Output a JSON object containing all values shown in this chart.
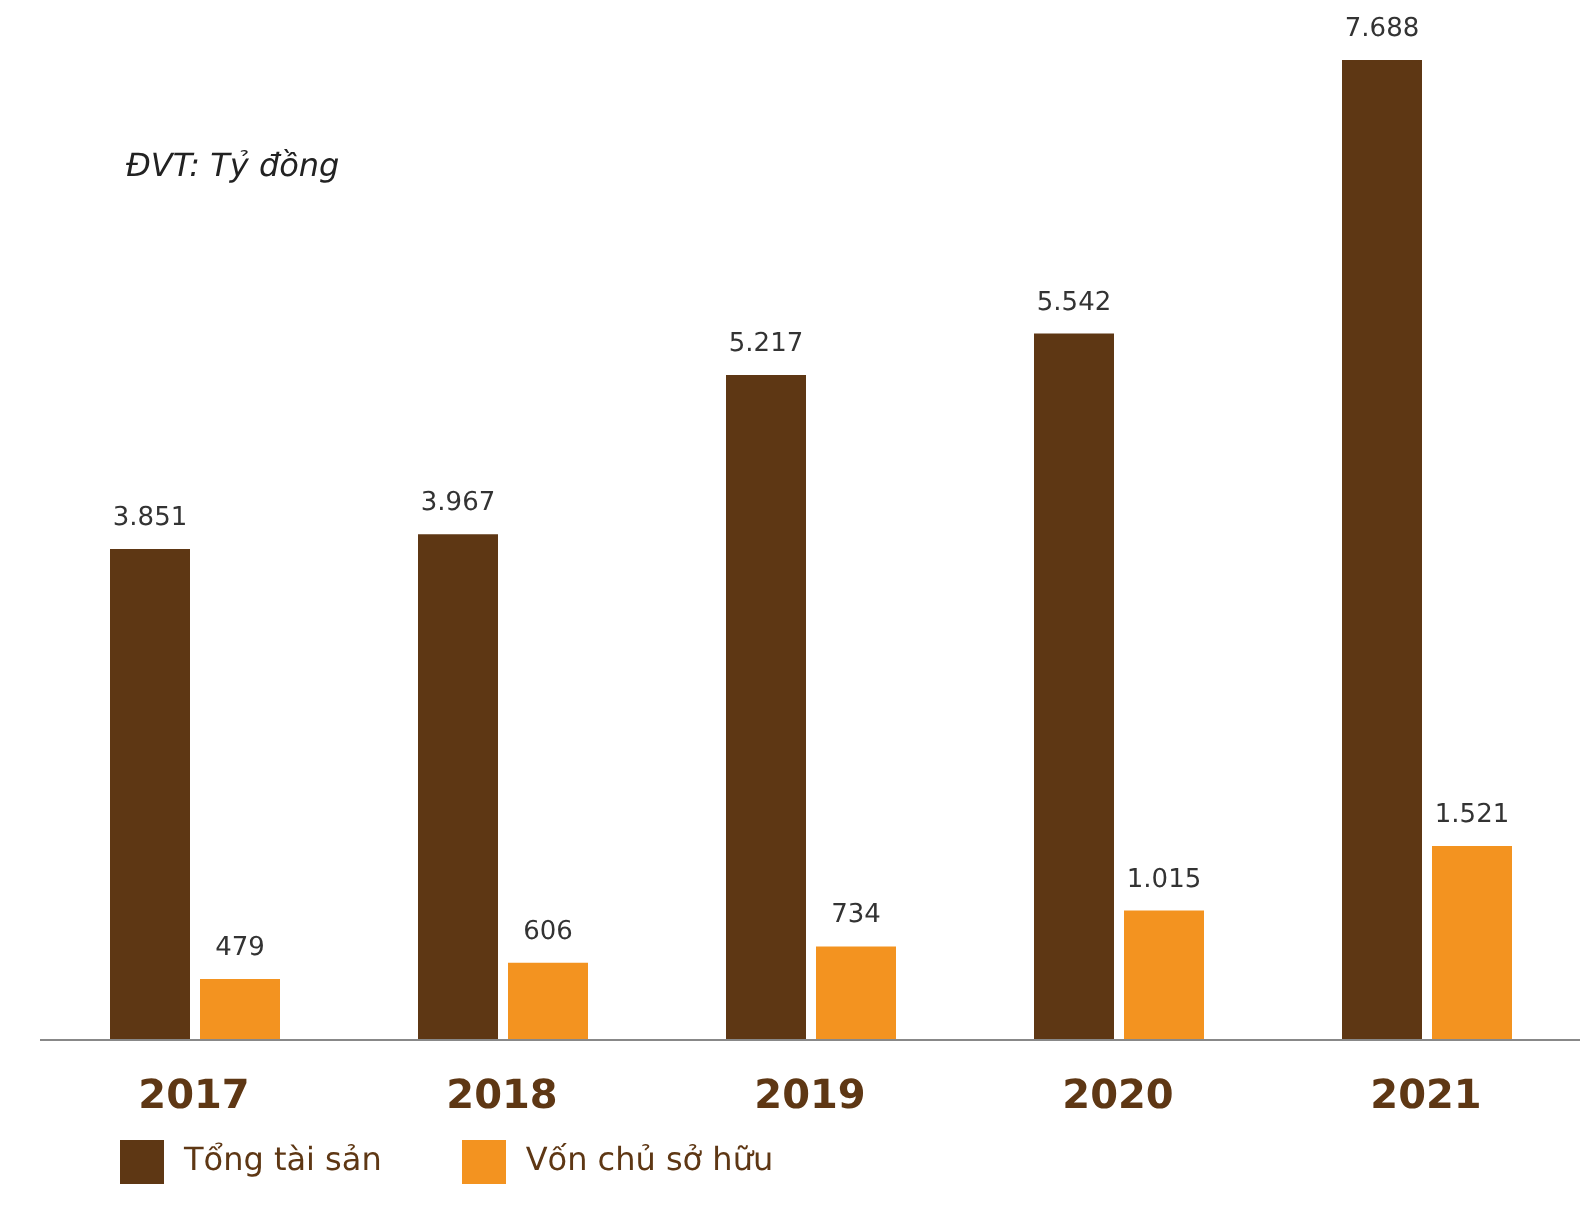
{
  "chart_data": {
    "type": "bar",
    "annotations": [
      "ĐVT: Tỷ đồng"
    ],
    "categories": [
      "2017",
      "2018",
      "2019",
      "2020",
      "2021"
    ],
    "series": [
      {
        "name": "Tổng tài sản",
        "color": "#5e3714",
        "values": [
          3851,
          3967,
          5217,
          5542,
          7688
        ],
        "value_labels": [
          "3.851",
          "3.967",
          "5.217",
          "5.542",
          "7.688"
        ]
      },
      {
        "name": "Vốn chủ sở hữu",
        "color": "#f39320",
        "values": [
          479,
          606,
          734,
          1015,
          1521
        ],
        "value_labels": [
          "479",
          "606",
          "734",
          "1.015",
          "1.521"
        ]
      }
    ],
    "legend": "bottom left",
    "grid": false
  }
}
